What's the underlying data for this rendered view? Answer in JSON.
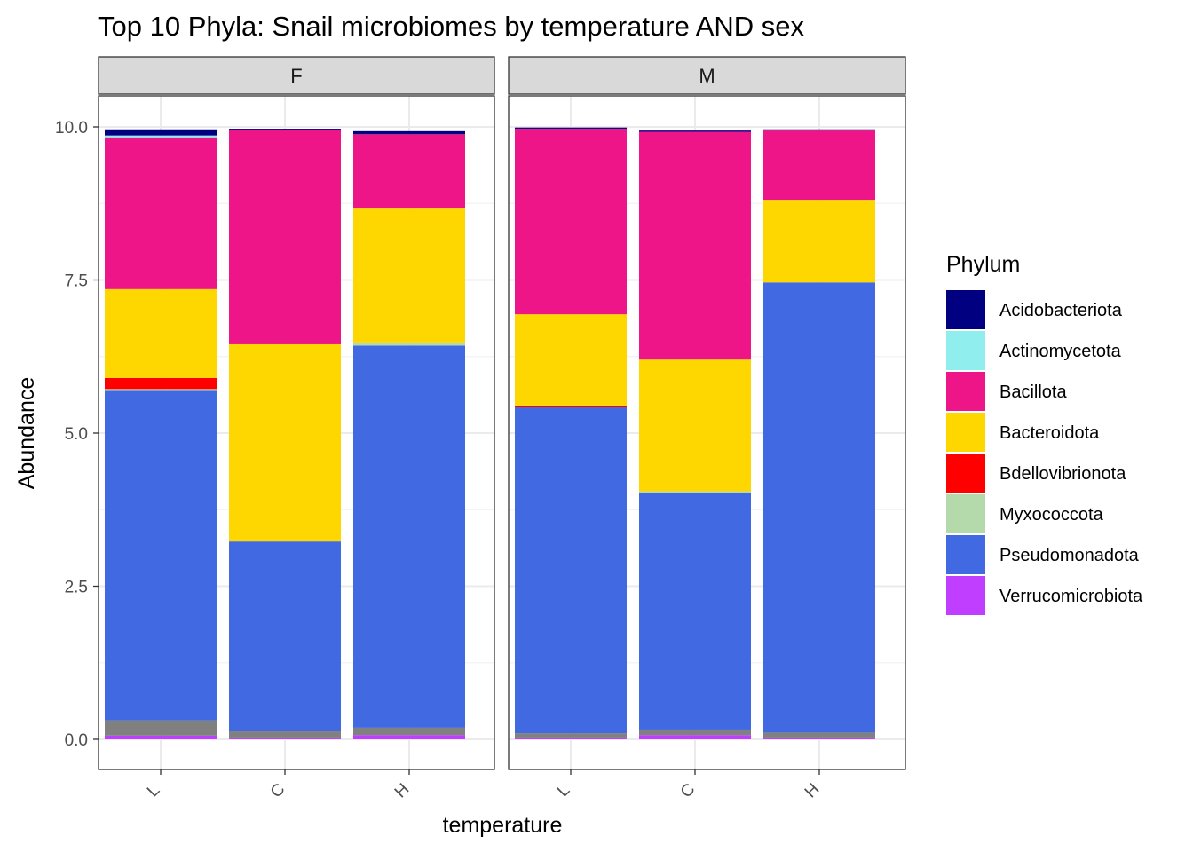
{
  "chart_data": {
    "type": "bar",
    "stacked": true,
    "title": "Top 10 Phyla: Snail microbiomes by temperature AND sex",
    "xlabel": "temperature",
    "ylabel": "Abundance",
    "ylim": [
      0,
      10.45
    ],
    "y_ticks": [
      "0.0",
      "2.5",
      "5.0",
      "7.5",
      "10.0"
    ],
    "y_tick_values": [
      0,
      2.5,
      5,
      7.5,
      10
    ],
    "grid": true,
    "legend_position": "right",
    "legend_title": "Phylum",
    "categories": [
      "L",
      "C",
      "H"
    ],
    "facets": [
      "F",
      "M"
    ],
    "legend": [
      {
        "name": "Acidobacteriota",
        "color": "#000080"
      },
      {
        "name": "Actinomycetota",
        "color": "#90EEEE"
      },
      {
        "name": "Bacillota",
        "color": "#EE1589"
      },
      {
        "name": "Bacteroidota",
        "color": "#FFD700"
      },
      {
        "name": "Bdellovibrionota",
        "color": "#FF0000"
      },
      {
        "name": "Myxococcota",
        "color": "#B4D9AA"
      },
      {
        "name": "Pseudomonadota",
        "color": "#4169E1"
      },
      {
        "name": "Verrucomicrobiota",
        "color": "#BF3EFF"
      }
    ],
    "other_color": "#808080",
    "stack_order_bottom_to_top": [
      "Verrucomicrobiota",
      "Other",
      "Pseudomonadota",
      "Myxococcota",
      "Bdellovibrionota",
      "Bacteroidota",
      "Bacillota",
      "Actinomycetota",
      "Acidobacteriota"
    ],
    "series": [
      {
        "facet": "F",
        "category": "L",
        "values": {
          "Verrucomicrobiota": 0.06,
          "Other": 0.25,
          "Pseudomonadota": 5.38,
          "Myxococcota": 0.03,
          "Bdellovibrionota": 0.18,
          "Bacteroidota": 1.45,
          "Bacillota": 2.48,
          "Actinomycetota": 0.03,
          "Acidobacteriota": 0.1
        }
      },
      {
        "facet": "F",
        "category": "C",
        "values": {
          "Verrucomicrobiota": 0.03,
          "Other": 0.1,
          "Pseudomonadota": 3.1,
          "Myxococcota": 0.0,
          "Bdellovibrionota": 0.0,
          "Bacteroidota": 3.22,
          "Bacillota": 3.5,
          "Actinomycetota": 0.0,
          "Acidobacteriota": 0.02
        }
      },
      {
        "facet": "F",
        "category": "H",
        "values": {
          "Verrucomicrobiota": 0.07,
          "Other": 0.12,
          "Pseudomonadota": 6.24,
          "Myxococcota": 0.05,
          "Bdellovibrionota": 0.0,
          "Bacteroidota": 2.2,
          "Bacillota": 1.2,
          "Actinomycetota": 0.0,
          "Acidobacteriota": 0.05
        }
      },
      {
        "facet": "M",
        "category": "L",
        "values": {
          "Verrucomicrobiota": 0.03,
          "Other": 0.07,
          "Pseudomonadota": 5.32,
          "Myxococcota": 0.0,
          "Bdellovibrionota": 0.03,
          "Bacteroidota": 1.49,
          "Bacillota": 3.03,
          "Actinomycetota": 0.0,
          "Acidobacteriota": 0.02
        }
      },
      {
        "facet": "M",
        "category": "C",
        "values": {
          "Verrucomicrobiota": 0.07,
          "Other": 0.09,
          "Pseudomonadota": 3.86,
          "Myxococcota": 0.03,
          "Bdellovibrionota": 0.0,
          "Bacteroidota": 2.15,
          "Bacillota": 3.72,
          "Actinomycetota": 0.0,
          "Acidobacteriota": 0.02
        }
      },
      {
        "facet": "M",
        "category": "H",
        "values": {
          "Verrucomicrobiota": 0.03,
          "Other": 0.08,
          "Pseudomonadota": 7.35,
          "Myxococcota": 0.0,
          "Bdellovibrionota": 0.0,
          "Bacteroidota": 1.35,
          "Bacillota": 1.13,
          "Actinomycetota": 0.0,
          "Acidobacteriota": 0.02
        }
      }
    ]
  }
}
